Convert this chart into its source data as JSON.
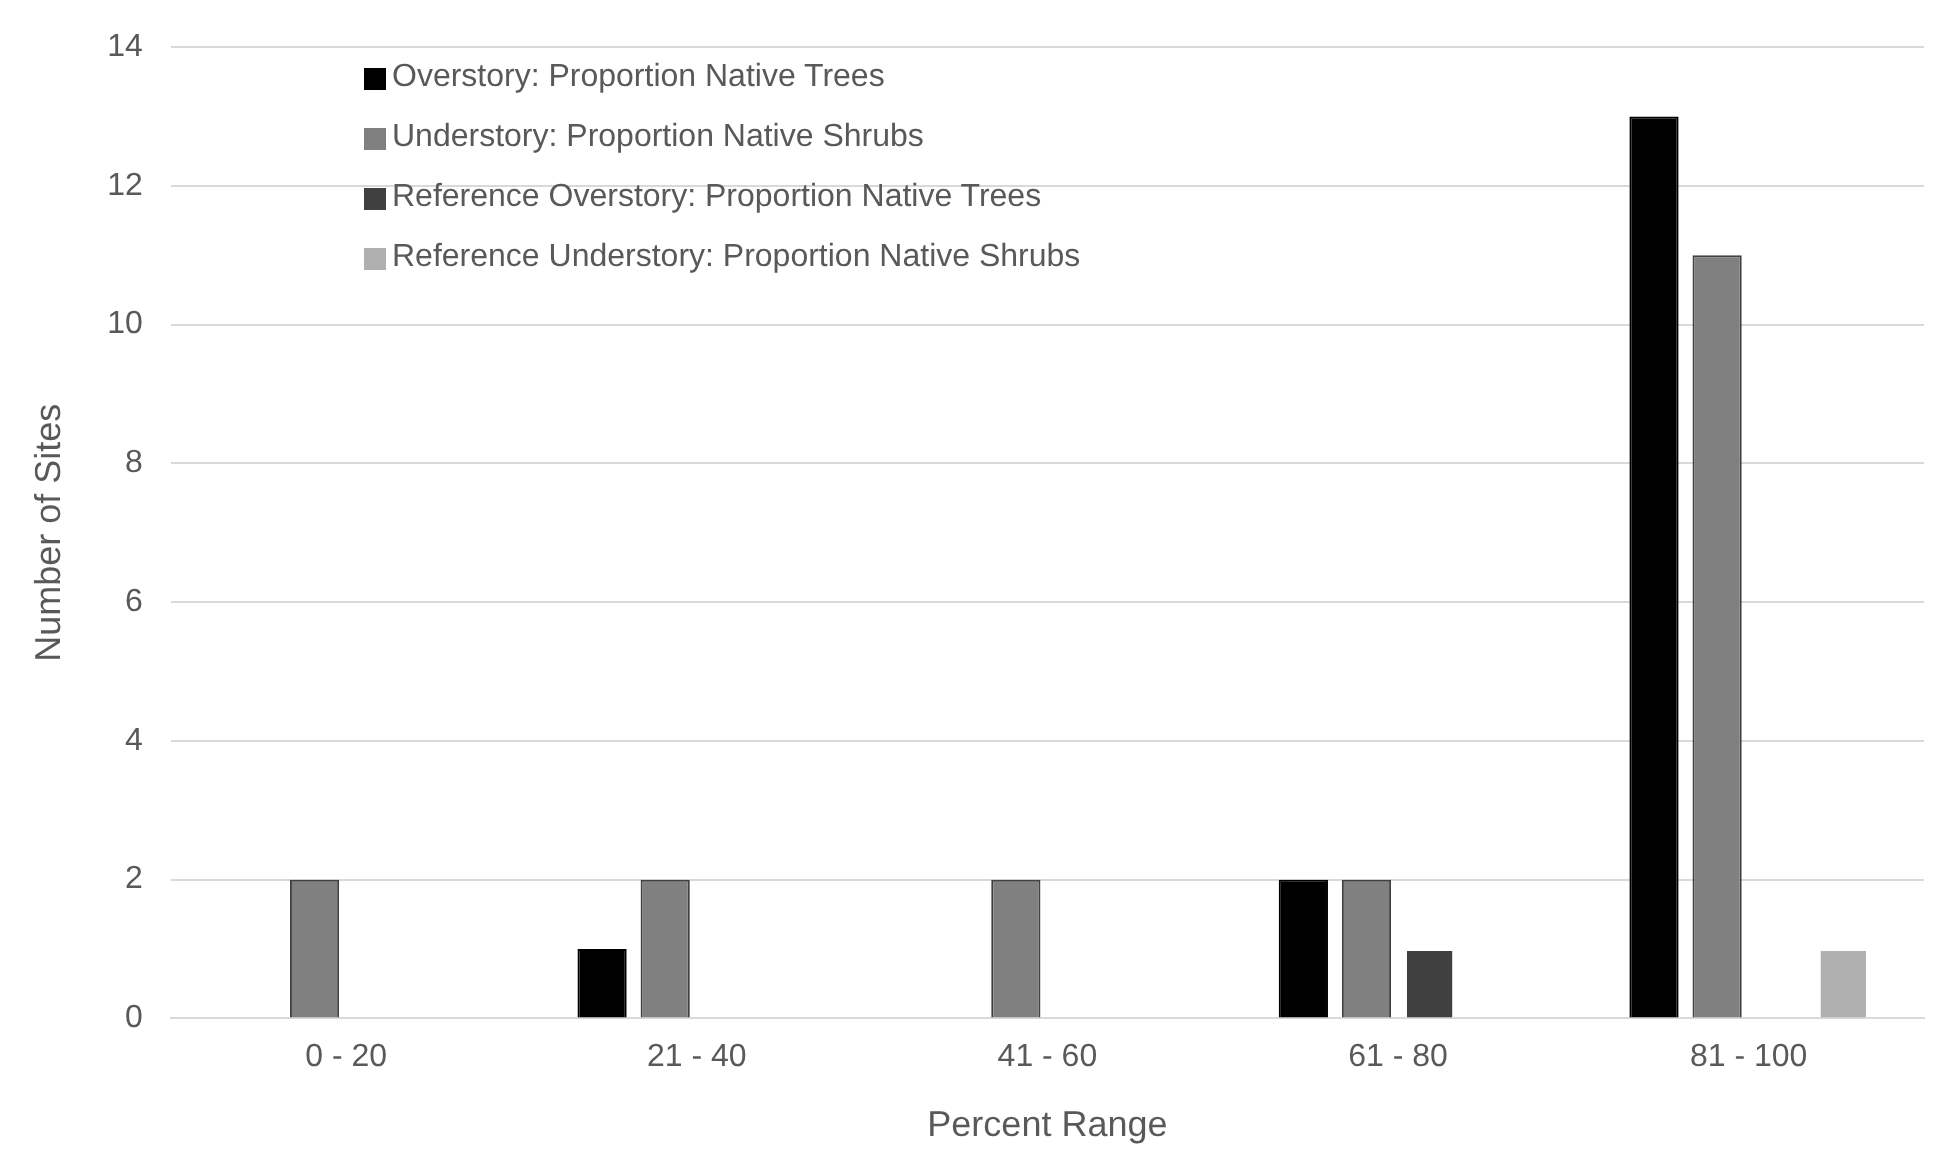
{
  "chart_data": {
    "type": "bar",
    "xlabel": "Percent Range",
    "ylabel": "Number of Sites",
    "categories": [
      "0 - 20",
      "21 - 40",
      "41 - 60",
      "61 - 80",
      "81 - 100"
    ],
    "series": [
      {
        "name": "Overstory: Proportion Native Trees",
        "color": "#000000",
        "values": [
          0,
          1,
          0,
          2,
          13
        ]
      },
      {
        "name": "Understory: Proportion Native Shrubs",
        "color": "#808080",
        "values": [
          2,
          2,
          2,
          2,
          11
        ]
      },
      {
        "name": "Reference Overstory: Proportion Native Trees",
        "color": "#404040",
        "values": [
          0,
          0,
          0,
          1,
          0
        ]
      },
      {
        "name": "Reference Understory: Proportion Native Shrubs",
        "color": "#b0b0b0",
        "values": [
          0,
          0,
          0,
          0,
          1
        ]
      }
    ],
    "ylim": [
      0,
      14
    ],
    "yticks": [
      0,
      2,
      4,
      6,
      8,
      10,
      12,
      14
    ],
    "grid": "y",
    "legend": "top left"
  }
}
